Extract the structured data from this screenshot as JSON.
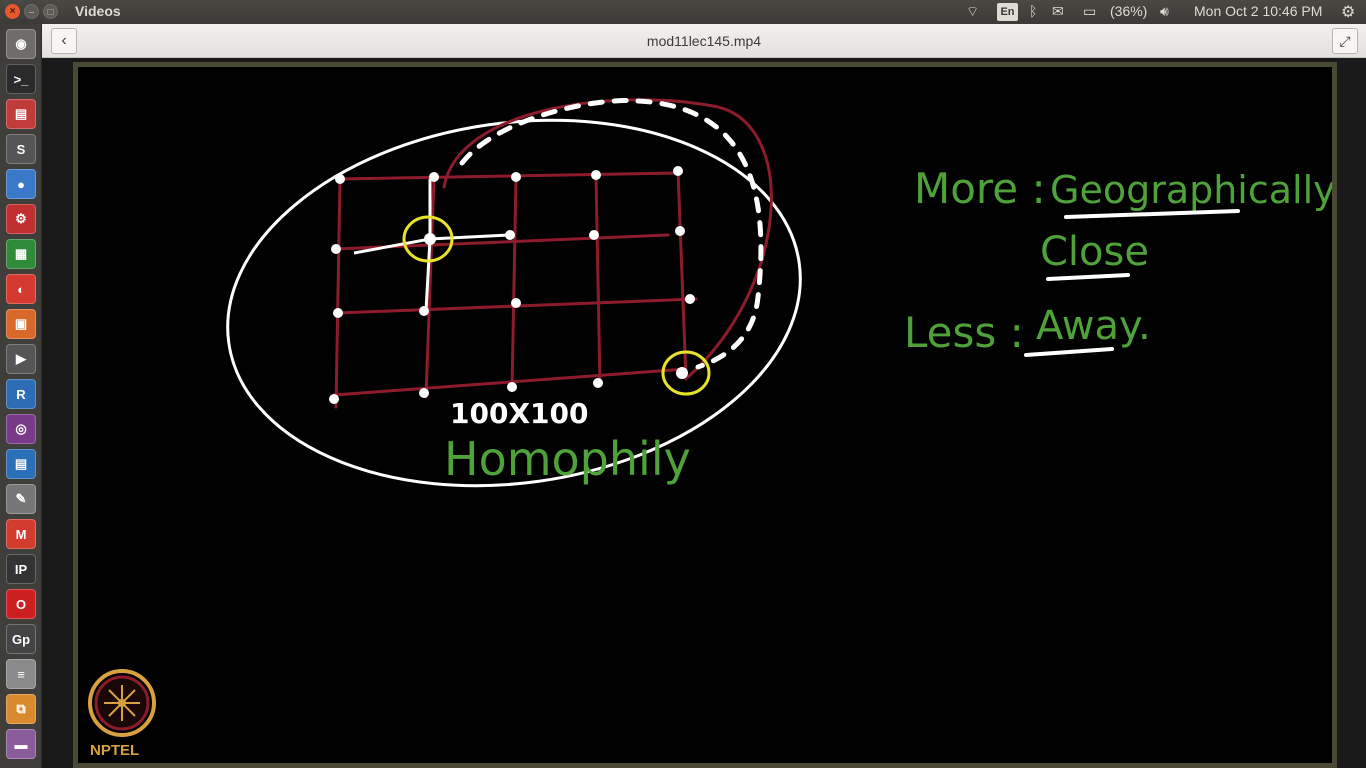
{
  "window": {
    "app_title": "Videos"
  },
  "panel": {
    "keyboard": "En",
    "battery": "(36%)",
    "clock": "Mon Oct  2 10:46 PM"
  },
  "header": {
    "file_title": "mod11lec145.mp4"
  },
  "launcher_items": [
    {
      "name": "dash-icon",
      "glyph": "◉",
      "color": "#6e6d69"
    },
    {
      "name": "terminal-icon",
      "glyph": ">_",
      "color": "#2b2b2b"
    },
    {
      "name": "files-icon",
      "glyph": "▤",
      "color": "#c23b3b"
    },
    {
      "name": "sublime-icon",
      "glyph": "S",
      "color": "#555"
    },
    {
      "name": "chrome-icon",
      "glyph": "●",
      "color": "#3a78c9"
    },
    {
      "name": "settings-icon",
      "glyph": "⚙",
      "color": "#c03030"
    },
    {
      "name": "spreadsheet-icon",
      "glyph": "▦",
      "color": "#2f8a3a"
    },
    {
      "name": "pdf-icon",
      "glyph": "◐",
      "color": "#d43a2f"
    },
    {
      "name": "impress-icon",
      "glyph": "▣",
      "color": "#d8692a"
    },
    {
      "name": "video-editor-icon",
      "glyph": "▶",
      "color": "#555"
    },
    {
      "name": "r-icon",
      "glyph": "R",
      "color": "#2c6db5"
    },
    {
      "name": "media-icon",
      "glyph": "◎",
      "color": "#7a3a8a"
    },
    {
      "name": "writer-icon",
      "glyph": "▤",
      "color": "#2a6fb8"
    },
    {
      "name": "text-editor-icon",
      "glyph": "✎",
      "color": "#777"
    },
    {
      "name": "gmail-icon",
      "glyph": "M",
      "color": "#d23c2c"
    },
    {
      "name": "ipython-icon",
      "glyph": "IP",
      "color": "#333"
    },
    {
      "name": "opera-icon",
      "glyph": "O",
      "color": "#cc1f1f"
    },
    {
      "name": "gephi-icon",
      "glyph": "Gp",
      "color": "#444"
    },
    {
      "name": "stack-icon",
      "glyph": "≡",
      "color": "#8a8a8a"
    },
    {
      "name": "archive-icon",
      "glyph": "⧉",
      "color": "#d98a2c"
    },
    {
      "name": "drive-icon",
      "glyph": "▬",
      "color": "#8a5c9c"
    }
  ],
  "video": {
    "grid_label": "100X100",
    "topic": "Homophily",
    "more_label": "More :",
    "more_value_1": "Geographically",
    "more_value_2": "Close",
    "less_label": "Less :",
    "less_value": "Away",
    "less_period": ".",
    "logo_text": "NPTEL",
    "colors": {
      "grid": "#8c1c2c",
      "chalk": "#ffffff",
      "highlight": "#e8e22a",
      "text": "#4fa23a",
      "logo": "#d9a040"
    }
  }
}
